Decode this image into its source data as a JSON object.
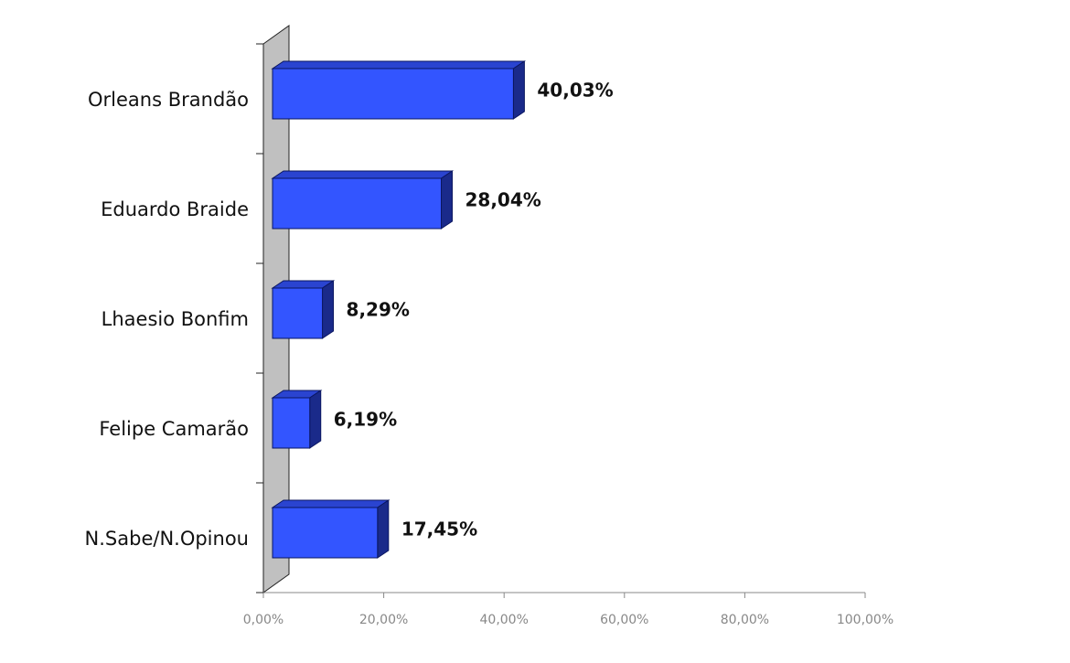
{
  "chart_data": {
    "type": "bar",
    "orientation": "horizontal",
    "categories": [
      "Orleans Brandão",
      "Eduardo Braide",
      "Lhaesio Bonfim",
      "Felipe Camarão",
      "N.Sabe/N.Opinou"
    ],
    "values": [
      40.03,
      28.04,
      8.29,
      6.19,
      17.45
    ],
    "value_labels": [
      "40,03%",
      "28,04%",
      "8,29%",
      "6,19%",
      "17,45%"
    ],
    "color": "#3355ff",
    "xlim": [
      0,
      100
    ],
    "xticks": [
      {
        "value": 0,
        "label": "0,00%"
      },
      {
        "value": 20,
        "label": "20,00%"
      },
      {
        "value": 40,
        "label": "40,00%"
      },
      {
        "value": 60,
        "label": "60,00%"
      },
      {
        "value": 80,
        "label": "80,00%"
      },
      {
        "value": 100,
        "label": "100,00%"
      }
    ]
  }
}
